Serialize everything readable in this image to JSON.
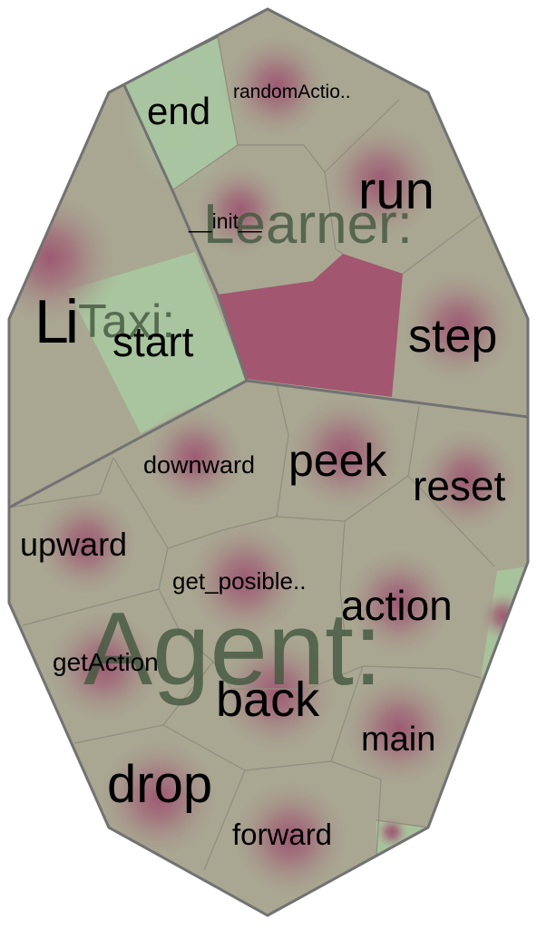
{
  "diagram": {
    "type": "voronoi-treemap",
    "colors": {
      "cell_fill": "#a9a792",
      "cell_glow": "#9d5a73",
      "hot_cell": "#a2566f",
      "light_cell": "#a8c59f",
      "border": "#777777",
      "class_label": "#44583f"
    },
    "classes": [
      {
        "name": "Learner:",
        "methods": [
          {
            "name": "end",
            "shade": "light"
          },
          {
            "name": "randomActio..",
            "shade": "warm"
          },
          {
            "name": "run",
            "shade": "warm"
          },
          {
            "name": "__init__",
            "shade": "warm"
          },
          {
            "name": "step",
            "shade": "warm"
          }
        ]
      },
      {
        "name": "Taxi:",
        "methods": [
          {
            "name": "start",
            "shade": "light"
          }
        ]
      },
      {
        "name": "Agent:",
        "methods": [
          {
            "name": "downward",
            "shade": "warm"
          },
          {
            "name": "peek",
            "shade": "warm"
          },
          {
            "name": "reset",
            "shade": "warm"
          },
          {
            "name": "upward",
            "shade": "warm"
          },
          {
            "name": "get_posible..",
            "shade": "warm"
          },
          {
            "name": "action",
            "shade": "warm"
          },
          {
            "name": "getAction",
            "shade": "warm"
          },
          {
            "name": "back",
            "shade": "warm"
          },
          {
            "name": "main",
            "shade": "warm"
          },
          {
            "name": "drop",
            "shade": "warm"
          },
          {
            "name": "forward",
            "shade": "warm"
          }
        ]
      }
    ],
    "overlap_label": "Li"
  }
}
